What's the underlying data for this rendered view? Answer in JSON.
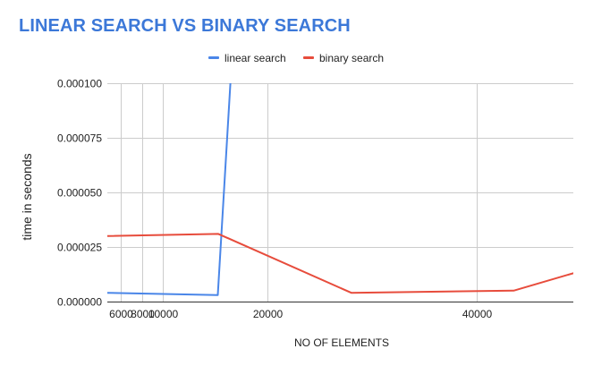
{
  "chart_data": {
    "type": "line",
    "title": "LINEAR SEARCH VS BINARY SEARCH",
    "xlabel": "NO OF ELEMENTS",
    "ylabel": "time in seconds",
    "xlim": [
      4700,
      49200
    ],
    "ylim": [
      0,
      0.0001
    ],
    "x_ticks": [
      6000,
      8000,
      10000,
      20000,
      40000
    ],
    "x_tick_labels": [
      "6000",
      "8000",
      "10000",
      "20000",
      "40000"
    ],
    "y_ticks": [
      0,
      2.5e-05,
      5e-05,
      7.5e-05,
      0.0001
    ],
    "y_tick_labels": [
      "0.000000",
      "0.000025",
      "0.000050",
      "0.000075",
      "0.000100"
    ],
    "grid": true,
    "legend_position": "top",
    "series": [
      {
        "name": "linear search",
        "color": "#4a86e8",
        "x": [
          4700,
          15250,
          16450
        ],
        "y": [
          4e-06,
          3e-06,
          0.0001
        ]
      },
      {
        "name": "binary search",
        "color": "#e74c3c",
        "x": [
          4700,
          15300,
          28000,
          43500,
          49200
        ],
        "y": [
          3e-05,
          3.1e-05,
          4e-06,
          5e-06,
          1.3e-05
        ]
      }
    ]
  }
}
